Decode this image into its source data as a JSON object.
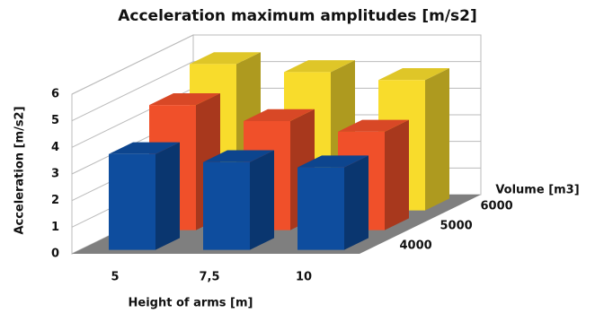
{
  "chart_data": {
    "type": "bar3d",
    "title": "Acceleration maximum amplitudes [m/s2]",
    "x_label": "Height of arms [m]",
    "y_label": "Acceleration [m/s2]",
    "z_label": "Volume [m3]",
    "categories": [
      "5",
      "7,5",
      "10"
    ],
    "series": [
      {
        "name": "4000",
        "color": "#0e4d9e",
        "values": [
          3.6,
          3.3,
          3.1
        ]
      },
      {
        "name": "5000",
        "color": "#f0502a",
        "values": [
          4.7,
          4.1,
          3.7
        ]
      },
      {
        "name": "6000",
        "color": "#f8dc2c",
        "values": [
          5.5,
          5.2,
          4.9
        ]
      }
    ],
    "ylim": [
      0,
      6
    ],
    "yticks": [
      0,
      1,
      2,
      3,
      4,
      5,
      6
    ],
    "grid": true
  }
}
